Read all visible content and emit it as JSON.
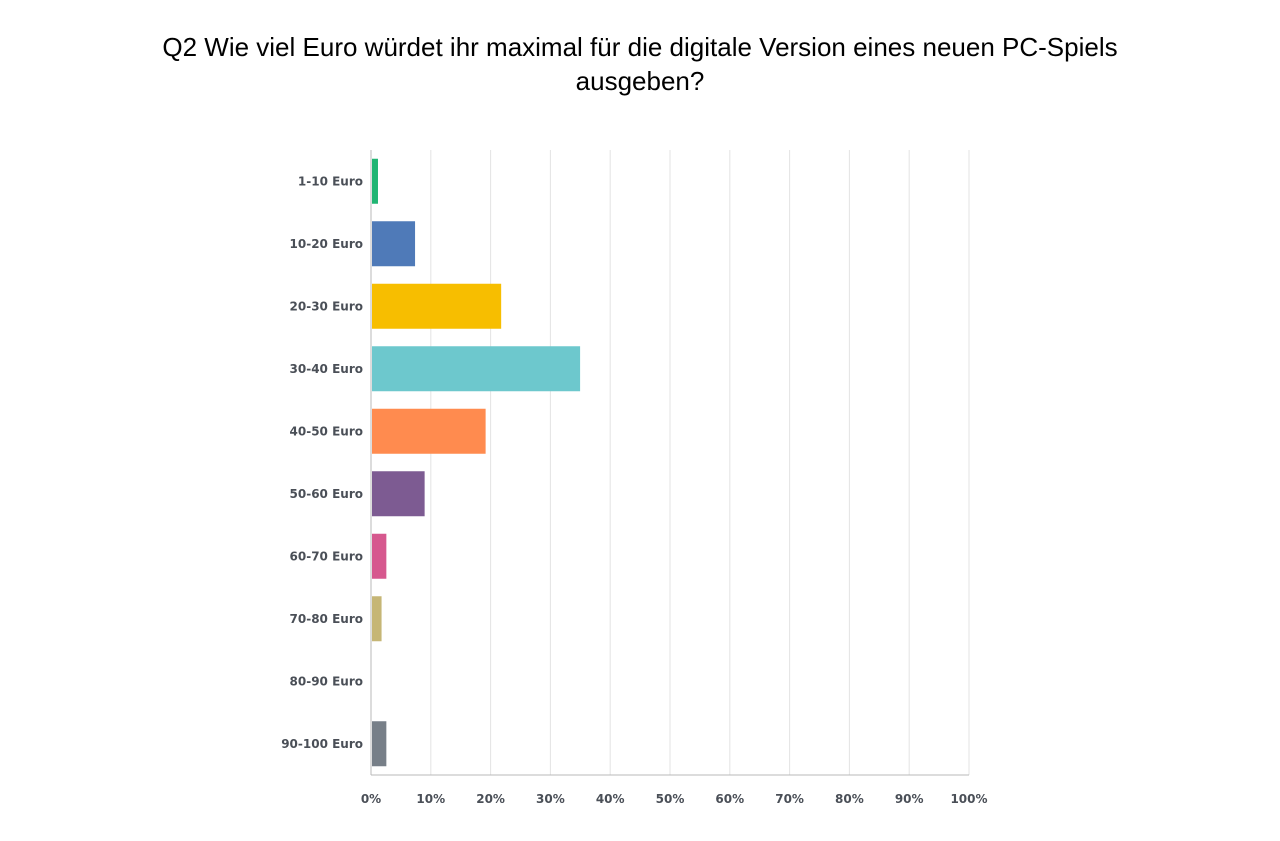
{
  "title": {
    "line1": "Q2 Wie viel Euro würdet ihr maximal für die digitale Version eines neuen PC-Spiels",
    "line2": "ausgeben?"
  },
  "chart_data": {
    "type": "bar",
    "orientation": "horizontal",
    "categories": [
      "1-10 Euro",
      "10-20 Euro",
      "20-30 Euro",
      "30-40 Euro",
      "40-50 Euro",
      "50-60 Euro",
      "60-70 Euro",
      "70-80 Euro",
      "80-90 Euro",
      "90-100 Euro"
    ],
    "values": [
      1.0,
      7.2,
      21.6,
      34.8,
      19.0,
      8.8,
      2.4,
      1.6,
      0,
      2.4
    ],
    "colors": [
      "#21b573",
      "#4f7ab8",
      "#f7be00",
      "#6dc8cd",
      "#ff8b4f",
      "#7d5b92",
      "#d6588e",
      "#c6b676",
      "#ffffff",
      "#777f88"
    ],
    "xlim": [
      0,
      100
    ],
    "x_ticks": [
      "0%",
      "10%",
      "20%",
      "30%",
      "40%",
      "50%",
      "60%",
      "70%",
      "80%",
      "90%",
      "100%"
    ],
    "grid": true,
    "unit": "%"
  }
}
